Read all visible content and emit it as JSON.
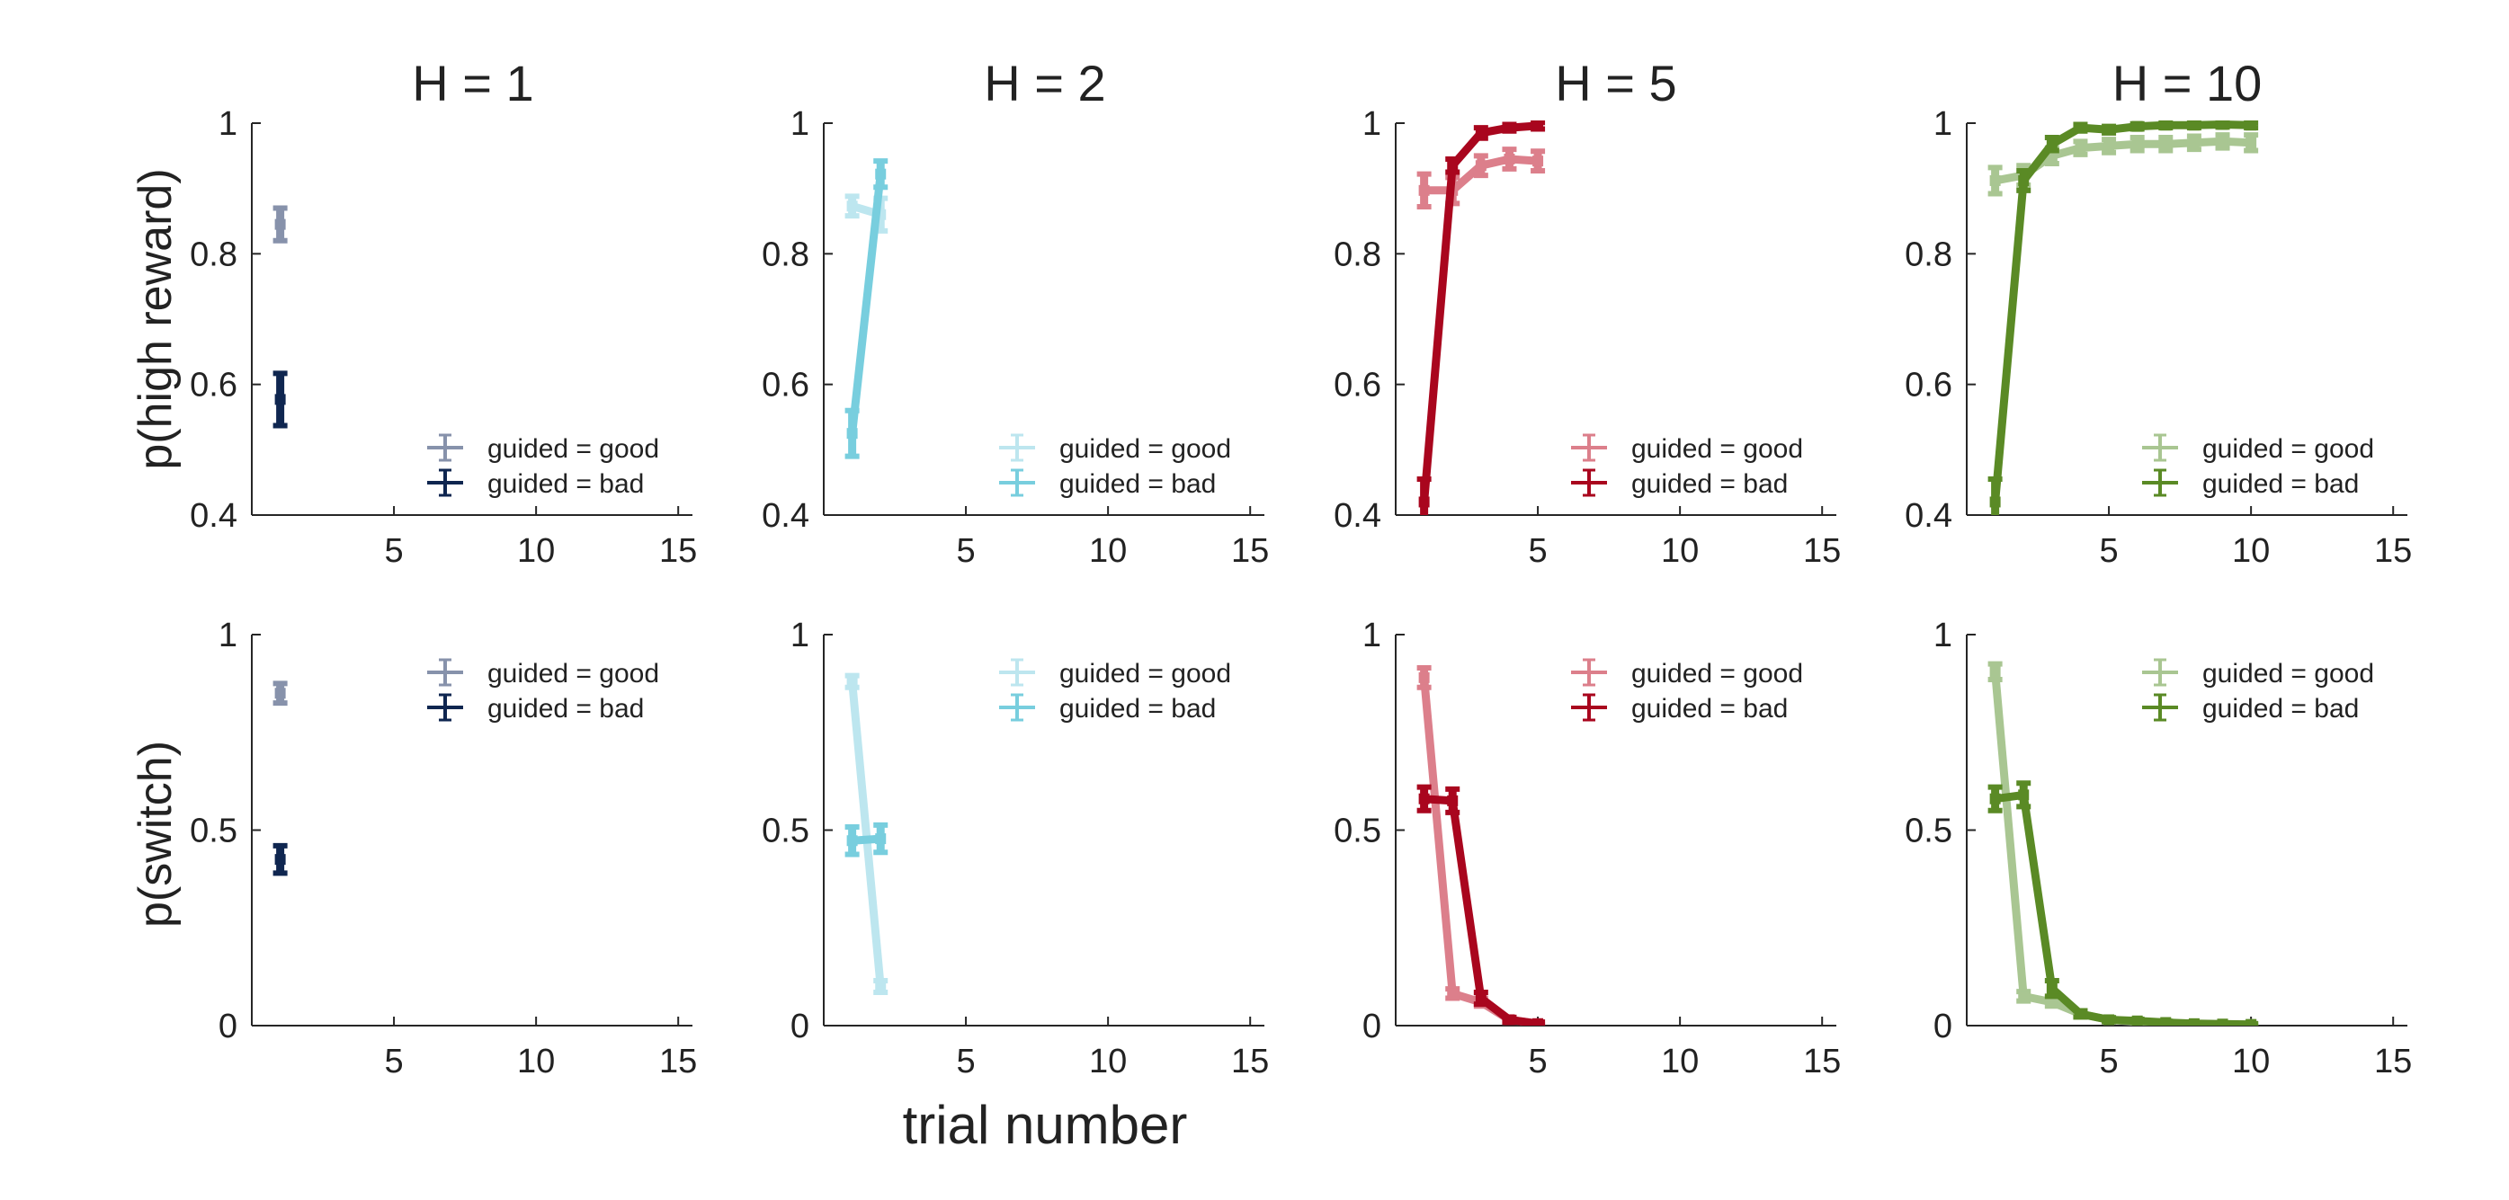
{
  "figure": {
    "xlabel": "trial number",
    "row_ylabels": [
      "p(high reward)",
      "p(switch)"
    ],
    "col_titles": [
      "H = 1",
      "H = 2",
      "H = 5",
      "H = 10"
    ],
    "legend_labels": [
      "guided = good",
      "guided = bad"
    ]
  },
  "chart_data": [
    {
      "type": "line",
      "title": "H = 1",
      "xlabel": "",
      "ylabel": "p(high reward)",
      "xlim": [
        0,
        15.5
      ],
      "ylim": [
        0.4,
        1
      ],
      "xticks": [
        "5",
        "10",
        "15"
      ],
      "yticks": [
        "0.4",
        "0.6",
        "0.8",
        "1"
      ],
      "legend": "bottom-right",
      "series": [
        {
          "name": "guided = good",
          "color": "#8792ab",
          "x": [
            1
          ],
          "y": [
            0.845
          ],
          "err": [
            0.025
          ]
        },
        {
          "name": "guided = bad",
          "color": "#0f2650",
          "x": [
            1
          ],
          "y": [
            0.577
          ],
          "err": [
            0.04
          ]
        }
      ]
    },
    {
      "type": "line",
      "title": "H = 2",
      "xlabel": "",
      "ylabel": "",
      "xlim": [
        0,
        15.5
      ],
      "ylim": [
        0.4,
        1
      ],
      "xticks": [
        "5",
        "10",
        "15"
      ],
      "yticks": [
        "0.4",
        "0.6",
        "0.8",
        "1"
      ],
      "legend": "bottom-right",
      "series": [
        {
          "name": "guided = good",
          "color": "#bde6ef",
          "x": [
            1,
            2
          ],
          "y": [
            0.873,
            0.86
          ],
          "err": [
            0.015,
            0.025
          ]
        },
        {
          "name": "guided = bad",
          "color": "#78cede",
          "x": [
            1,
            2
          ],
          "y": [
            0.525,
            0.922
          ],
          "err": [
            0.035,
            0.02
          ]
        }
      ]
    },
    {
      "type": "line",
      "title": "H = 5",
      "xlabel": "",
      "ylabel": "",
      "xlim": [
        0,
        15.5
      ],
      "ylim": [
        0.4,
        1
      ],
      "xticks": [
        "5",
        "10",
        "15"
      ],
      "yticks": [
        "0.4",
        "0.6",
        "0.8",
        "1"
      ],
      "legend": "bottom-right",
      "series": [
        {
          "name": "guided = good",
          "color": "#dc7f8b",
          "x": [
            1,
            2,
            3,
            4,
            5
          ],
          "y": [
            0.897,
            0.897,
            0.935,
            0.945,
            0.942
          ],
          "err": [
            0.025,
            0.02,
            0.015,
            0.015,
            0.015
          ]
        },
        {
          "name": "guided = bad",
          "color": "#a9061e",
          "x": [
            1,
            2,
            3,
            4,
            5
          ],
          "y": [
            0.42,
            0.935,
            0.985,
            0.993,
            0.996
          ],
          "err": [
            0.035,
            0.01,
            0.008,
            0.005,
            0.005
          ]
        }
      ]
    },
    {
      "type": "line",
      "title": "H = 10",
      "xlabel": "",
      "ylabel": "",
      "xlim": [
        0,
        15.5
      ],
      "ylim": [
        0.4,
        1
      ],
      "xticks": [
        "5",
        "10",
        "15"
      ],
      "yticks": [
        "0.4",
        "0.6",
        "0.8",
        "1"
      ],
      "legend": "bottom-right",
      "series": [
        {
          "name": "guided = good",
          "color": "#a9c692",
          "x": [
            1,
            2,
            3,
            4,
            5,
            6,
            7,
            8,
            9,
            10
          ],
          "y": [
            0.912,
            0.92,
            0.95,
            0.962,
            0.965,
            0.968,
            0.968,
            0.97,
            0.972,
            0.97
          ],
          "err": [
            0.02,
            0.015,
            0.012,
            0.01,
            0.01,
            0.01,
            0.01,
            0.01,
            0.01,
            0.012
          ]
        },
        {
          "name": "guided = bad",
          "color": "#5a8a25",
          "x": [
            1,
            2,
            3,
            4,
            5,
            6,
            7,
            8,
            9,
            10
          ],
          "y": [
            0.42,
            0.912,
            0.968,
            0.993,
            0.99,
            0.995,
            0.997,
            0.997,
            0.998,
            0.997
          ],
          "err": [
            0.035,
            0.015,
            0.01,
            0.005,
            0.005,
            0.004,
            0.004,
            0.004,
            0.004,
            0.004
          ]
        }
      ]
    },
    {
      "type": "line",
      "title": "",
      "xlabel": "",
      "ylabel": "p(switch)",
      "xlim": [
        0,
        15.5
      ],
      "ylim": [
        0,
        1
      ],
      "xticks": [
        "5",
        "10",
        "15"
      ],
      "yticks": [
        "0",
        "0.5",
        "1"
      ],
      "legend": "top-right",
      "series": [
        {
          "name": "guided = good",
          "color": "#8792ab",
          "x": [
            1
          ],
          "y": [
            0.85
          ],
          "err": [
            0.025
          ]
        },
        {
          "name": "guided = bad",
          "color": "#0f2650",
          "x": [
            1
          ],
          "y": [
            0.425
          ],
          "err": [
            0.035
          ]
        }
      ]
    },
    {
      "type": "line",
      "title": "",
      "xlabel": "",
      "ylabel": "",
      "xlim": [
        0,
        15.5
      ],
      "ylim": [
        0,
        1
      ],
      "xticks": [
        "5",
        "10",
        "15"
      ],
      "yticks": [
        "0",
        "0.5",
        "1"
      ],
      "legend": "top-right",
      "series": [
        {
          "name": "guided = good",
          "color": "#bde6ef",
          "x": [
            1,
            2
          ],
          "y": [
            0.88,
            0.1
          ],
          "err": [
            0.015,
            0.015
          ]
        },
        {
          "name": "guided = bad",
          "color": "#78cede",
          "x": [
            1,
            2
          ],
          "y": [
            0.473,
            0.478
          ],
          "err": [
            0.035,
            0.035
          ]
        }
      ]
    },
    {
      "type": "line",
      "title": "",
      "xlabel": "",
      "ylabel": "",
      "xlim": [
        0,
        15.5
      ],
      "ylim": [
        0,
        1
      ],
      "xticks": [
        "5",
        "10",
        "15"
      ],
      "yticks": [
        "0",
        "0.5",
        "1"
      ],
      "legend": "top-right",
      "series": [
        {
          "name": "guided = good",
          "color": "#dc7f8b",
          "x": [
            1,
            2,
            3,
            4,
            5
          ],
          "y": [
            0.89,
            0.082,
            0.06,
            0.015,
            0.005
          ],
          "err": [
            0.025,
            0.012,
            0.01,
            0.006,
            0.004
          ]
        },
        {
          "name": "guided = bad",
          "color": "#a9061e",
          "x": [
            1,
            2,
            3,
            4,
            5
          ],
          "y": [
            0.58,
            0.575,
            0.07,
            0.015,
            0.005
          ],
          "err": [
            0.03,
            0.03,
            0.015,
            0.006,
            0.004
          ]
        }
      ]
    },
    {
      "type": "line",
      "title": "",
      "xlabel": "",
      "ylabel": "",
      "xlim": [
        0,
        15.5
      ],
      "ylim": [
        0,
        1
      ],
      "xticks": [
        "5",
        "10",
        "15"
      ],
      "yticks": [
        "0",
        "0.5",
        "1"
      ],
      "legend": "top-right",
      "series": [
        {
          "name": "guided = good",
          "color": "#a9c692",
          "x": [
            1,
            2,
            3,
            4,
            5,
            6,
            7,
            8,
            9,
            10
          ],
          "y": [
            0.905,
            0.075,
            0.06,
            0.03,
            0.015,
            0.01,
            0.006,
            0.004,
            0.003,
            0.003
          ],
          "err": [
            0.02,
            0.012,
            0.01,
            0.008,
            0.005,
            0.004,
            0.003,
            0.003,
            0.002,
            0.002
          ]
        },
        {
          "name": "guided = bad",
          "color": "#5a8a25",
          "x": [
            1,
            2,
            3,
            4,
            5,
            6,
            7,
            8,
            9,
            10
          ],
          "y": [
            0.58,
            0.59,
            0.095,
            0.03,
            0.015,
            0.012,
            0.008,
            0.005,
            0.004,
            0.003
          ],
          "err": [
            0.03,
            0.03,
            0.02,
            0.008,
            0.005,
            0.004,
            0.003,
            0.003,
            0.002,
            0.002
          ]
        }
      ]
    }
  ]
}
